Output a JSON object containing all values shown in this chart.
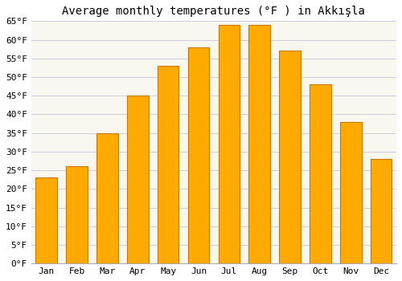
{
  "title": "Average monthly temperatures (°F ) in Akkışla",
  "months": [
    "Jan",
    "Feb",
    "Mar",
    "Apr",
    "May",
    "Jun",
    "Jul",
    "Aug",
    "Sep",
    "Oct",
    "Nov",
    "Dec"
  ],
  "values": [
    23,
    26,
    35,
    45,
    53,
    58,
    64,
    64,
    57,
    48,
    38,
    28
  ],
  "bar_color": "#FFAA00",
  "bar_edge_color": "#CC7700",
  "ylim": [
    0,
    65
  ],
  "yticks": [
    0,
    5,
    10,
    15,
    20,
    25,
    30,
    35,
    40,
    45,
    50,
    55,
    60,
    65
  ],
  "ytick_labels": [
    "0°F",
    "5°F",
    "10°F",
    "15°F",
    "20°F",
    "25°F",
    "30°F",
    "35°F",
    "40°F",
    "45°F",
    "50°F",
    "55°F",
    "60°F",
    "65°F"
  ],
  "background_color": "#ffffff",
  "plot_bg_color": "#f8f8f0",
  "grid_color": "#ccccdd",
  "title_fontsize": 10,
  "tick_fontsize": 8,
  "bar_width": 0.7,
  "font_family": "monospace"
}
